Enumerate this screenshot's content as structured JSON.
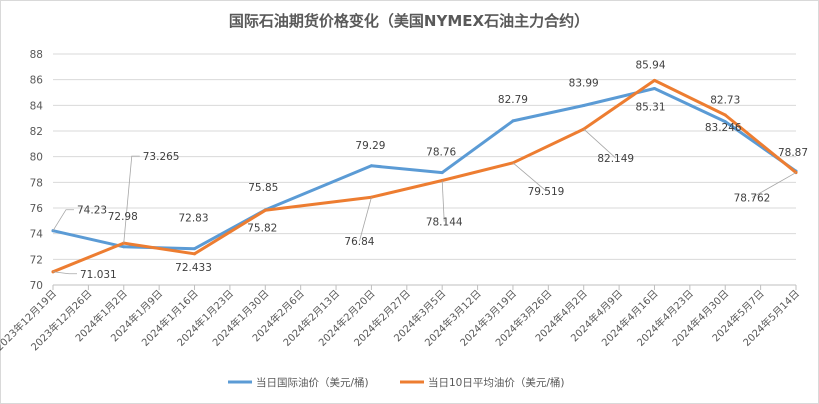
{
  "chart_data": {
    "type": "line",
    "title": "国际石油期货价格变化（美国NYMEX石油主力合约）",
    "xlabel": "",
    "ylabel": "",
    "ylim": [
      70,
      88
    ],
    "yticks": [
      "70",
      "72",
      "74",
      "76",
      "78",
      "80",
      "82",
      "84",
      "86",
      "88"
    ],
    "grid": "horizontal",
    "legend_position": "bottom",
    "categories": [
      "2023年12月19日",
      "2023年12月26日",
      "2024年1月2日",
      "2024年1月9日",
      "2024年1月16日",
      "2024年1月23日",
      "2024年1月30日",
      "2024年2月6日",
      "2024年2月13日",
      "2024年2月20日",
      "2024年2月27日",
      "2024年3月5日",
      "2024年3月12日",
      "2024年3月19日",
      "2024年3月26日",
      "2024年4月2日",
      "2024年4月9日",
      "2024年4月16日",
      "2024年4月23日",
      "2024年4月30日",
      "2024年5月7日",
      "2024年5月14日"
    ],
    "series": [
      {
        "name": "当日国际油价（美元/桶)",
        "color": "#5B9BD5",
        "points": [
          {
            "x": "2023年12月19日",
            "y": 74.23
          },
          {
            "x": "2024年1月2日",
            "y": 72.98
          },
          {
            "x": "2024年1月16日",
            "y": 72.83
          },
          {
            "x": "2024年1月30日",
            "y": 75.85
          },
          {
            "x": "2024年2月20日",
            "y": 79.29
          },
          {
            "x": "2024年3月5日",
            "y": 78.76
          },
          {
            "x": "2024年3月19日",
            "y": 82.79
          },
          {
            "x": "2024年4月2日",
            "y": 83.99
          },
          {
            "x": "2024年4月16日",
            "y": 85.31
          },
          {
            "x": "2024年4月30日",
            "y": 82.73
          },
          {
            "x": "2024年5月14日",
            "y": 78.87
          }
        ],
        "labels": [
          "74.23",
          "72.98",
          "72.83",
          "75.85",
          "79.29",
          "78.76",
          "82.79",
          "83.99",
          "85.31",
          "82.73",
          "78.87"
        ]
      },
      {
        "name": "当日10日平均油价（美元/桶)",
        "color": "#ED7D31",
        "points": [
          {
            "x": "2023年12月19日",
            "y": 71.031
          },
          {
            "x": "2024年1月2日",
            "y": 73.265
          },
          {
            "x": "2024年1月16日",
            "y": 72.433
          },
          {
            "x": "2024年1月30日",
            "y": 75.82
          },
          {
            "x": "2024年2月20日",
            "y": 76.84
          },
          {
            "x": "2024年3月5日",
            "y": 78.144
          },
          {
            "x": "2024年3月19日",
            "y": 79.519
          },
          {
            "x": "2024年4月2日",
            "y": 82.149
          },
          {
            "x": "2024年4月16日",
            "y": 85.94
          },
          {
            "x": "2024年4月30日",
            "y": 83.246
          },
          {
            "x": "2024年5月14日",
            "y": 78.762
          }
        ],
        "labels": [
          "71.031",
          "73.265",
          "72.433",
          "75.82",
          "76.84",
          "78.144",
          "79.519",
          "82.149",
          "85.94",
          "83.246",
          "78.762"
        ]
      }
    ]
  }
}
